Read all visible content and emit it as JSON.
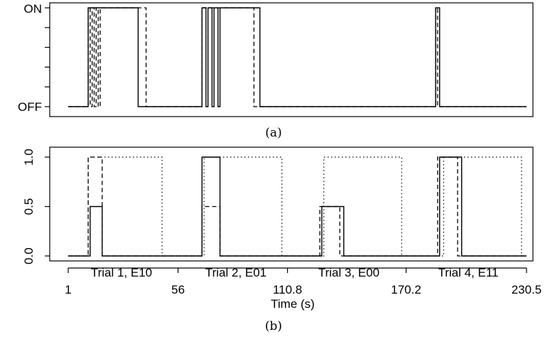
{
  "chart_data": [
    {
      "type": "line",
      "panel_caption": "(a)",
      "ylim": [
        "OFF",
        "ON"
      ],
      "y_tick_labels": [
        "ON",
        "OFF"
      ],
      "xlim": [
        1,
        230.5
      ],
      "series": [
        {
          "style": "solid",
          "steps": [
            [
              1,
              0
            ],
            [
              11,
              0
            ],
            [
              11,
              1
            ],
            [
              36,
              1
            ],
            [
              36,
              0
            ],
            [
              68,
              0
            ],
            [
              68,
              1
            ],
            [
              70,
              1
            ],
            [
              70,
              0
            ],
            [
              71,
              0
            ],
            [
              71,
              1
            ],
            [
              73,
              1
            ],
            [
              73,
              0
            ],
            [
              74,
              0
            ],
            [
              74,
              1
            ],
            [
              76,
              1
            ],
            [
              76,
              0
            ],
            [
              77,
              0
            ],
            [
              77,
              1
            ],
            [
              97,
              1
            ],
            [
              97,
              0
            ],
            [
              185,
              0
            ],
            [
              185,
              1
            ],
            [
              187,
              1
            ],
            [
              187,
              0
            ],
            [
              230.5,
              0
            ]
          ]
        },
        {
          "style": "dashed",
          "steps": [
            [
              1,
              0
            ],
            [
              11,
              0
            ],
            [
              11,
              1
            ],
            [
              12,
              1
            ],
            [
              12,
              0
            ],
            [
              13,
              0
            ],
            [
              13,
              1
            ],
            [
              14,
              1
            ],
            [
              14,
              0
            ],
            [
              15,
              0
            ],
            [
              15,
              1
            ],
            [
              16,
              1
            ],
            [
              16,
              0
            ],
            [
              17,
              0
            ],
            [
              17,
              1
            ],
            [
              40,
              1
            ],
            [
              40,
              0
            ],
            [
              68,
              0
            ],
            [
              68,
              1
            ],
            [
              94,
              1
            ],
            [
              94,
              0
            ],
            [
              185,
              0
            ],
            [
              185,
              1
            ],
            [
              186,
              1
            ],
            [
              186,
              0
            ],
            [
              230.5,
              0
            ]
          ]
        }
      ]
    },
    {
      "type": "line",
      "panel_caption": "(b)",
      "xlabel": "Time (s)",
      "x_ticks": [
        1,
        56,
        110.8,
        170.2,
        230.5
      ],
      "x_tick_labels": [
        "1",
        "56",
        "110.8",
        "170.2",
        "230.5"
      ],
      "trial_labels": [
        "Trial 1, E10",
        "Trial 2, E01",
        "Trial 3, E00",
        "Trial 4, E11"
      ],
      "ylim": [
        0,
        1
      ],
      "y_ticks": [
        0,
        0.5,
        1
      ],
      "y_tick_labels": [
        "0.0",
        "0.5",
        "1.0"
      ],
      "series": [
        {
          "style": "solid",
          "steps": [
            [
              1,
              0
            ],
            [
              12,
              0
            ],
            [
              12,
              0.5
            ],
            [
              18,
              0.5
            ],
            [
              18,
              0
            ],
            [
              68,
              0
            ],
            [
              68,
              1
            ],
            [
              77,
              1
            ],
            [
              77,
              0
            ],
            [
              128,
              0
            ],
            [
              128,
              0.5
            ],
            [
              139,
              0.5
            ],
            [
              139,
              0
            ],
            [
              187,
              0
            ],
            [
              187,
              1
            ],
            [
              198,
              1
            ],
            [
              198,
              0
            ],
            [
              230.5,
              0
            ]
          ]
        },
        {
          "style": "dashed",
          "steps": [
            [
              1,
              0
            ],
            [
              11,
              0
            ],
            [
              11,
              1
            ],
            [
              18,
              1
            ],
            [
              18,
              0
            ],
            [
              68,
              0
            ],
            [
              68,
              0.5
            ],
            [
              77,
              0.5
            ],
            [
              77,
              0
            ],
            [
              127,
              0
            ],
            [
              127,
              0.5
            ],
            [
              137,
              0.5
            ],
            [
              137,
              0
            ],
            [
              186,
              0
            ],
            [
              186,
              1
            ],
            [
              196,
              1
            ],
            [
              196,
              0
            ],
            [
              230.5,
              0
            ]
          ]
        },
        {
          "style": "dotted",
          "steps": [
            [
              1,
              0
            ],
            [
              11,
              0
            ],
            [
              11,
              1
            ],
            [
              48,
              1
            ],
            [
              48,
              0
            ],
            [
              69,
              0
            ],
            [
              69,
              1
            ],
            [
              108,
              1
            ],
            [
              108,
              0
            ],
            [
              129,
              0
            ],
            [
              129,
              1
            ],
            [
              168,
              1
            ],
            [
              168,
              0
            ],
            [
              189,
              0
            ],
            [
              189,
              1
            ],
            [
              228,
              1
            ],
            [
              228,
              0
            ],
            [
              230.5,
              0
            ]
          ]
        }
      ]
    }
  ]
}
